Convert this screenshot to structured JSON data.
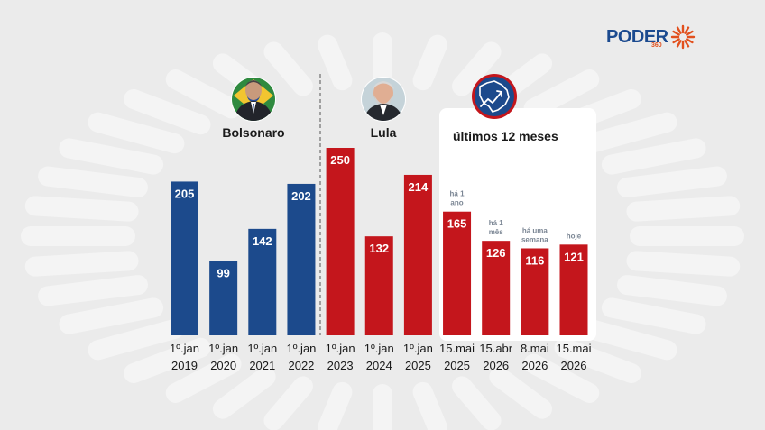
{
  "brand": {
    "name": "PODER",
    "suffix": "360",
    "accent": "#e2501d",
    "color": "#1b4a8f"
  },
  "colors": {
    "bolsonaro": "#1c4a8c",
    "lula": "#c4161c",
    "background": "#ebebeb",
    "panel": "#ffffff",
    "muted": "#7b8694"
  },
  "groups": [
    {
      "label": "Bolsonaro",
      "photo": "bolsonaro-portrait"
    },
    {
      "label": "Lula",
      "photo": "lula-portrait"
    },
    {
      "label": "últimos 12 meses",
      "icon": "brazil-map-trend-icon"
    }
  ],
  "chart_data": {
    "type": "bar",
    "title": "",
    "xlabel": "",
    "ylabel": "",
    "ylim": [
      0,
      260
    ],
    "grid": false,
    "categories": [
      [
        "1º.jan",
        "2019"
      ],
      [
        "1º.jan",
        "2020"
      ],
      [
        "1º.jan",
        "2021"
      ],
      [
        "1º.jan",
        "2022"
      ],
      [
        "1º.jan",
        "2023"
      ],
      [
        "1º.jan",
        "2024"
      ],
      [
        "1º.jan",
        "2025"
      ],
      [
        "15.mai",
        "2025"
      ],
      [
        "15.abr",
        "2026"
      ],
      [
        "8.mai",
        "2026"
      ],
      [
        "15.mai",
        "2026"
      ]
    ],
    "values": [
      205,
      99,
      142,
      202,
      250,
      132,
      214,
      165,
      126,
      116,
      121
    ],
    "bar_group": [
      "bolsonaro",
      "bolsonaro",
      "bolsonaro",
      "bolsonaro",
      "lula",
      "lula",
      "lula",
      "lula",
      "lula",
      "lula",
      "lula"
    ],
    "annotations": [
      {
        "index": 7,
        "lines": [
          "há 1",
          "ano"
        ]
      },
      {
        "index": 8,
        "lines": [
          "há 1",
          "mês"
        ]
      },
      {
        "index": 9,
        "lines": [
          "há uma",
          "semana"
        ]
      },
      {
        "index": 10,
        "lines": [
          "hoje"
        ]
      }
    ]
  }
}
